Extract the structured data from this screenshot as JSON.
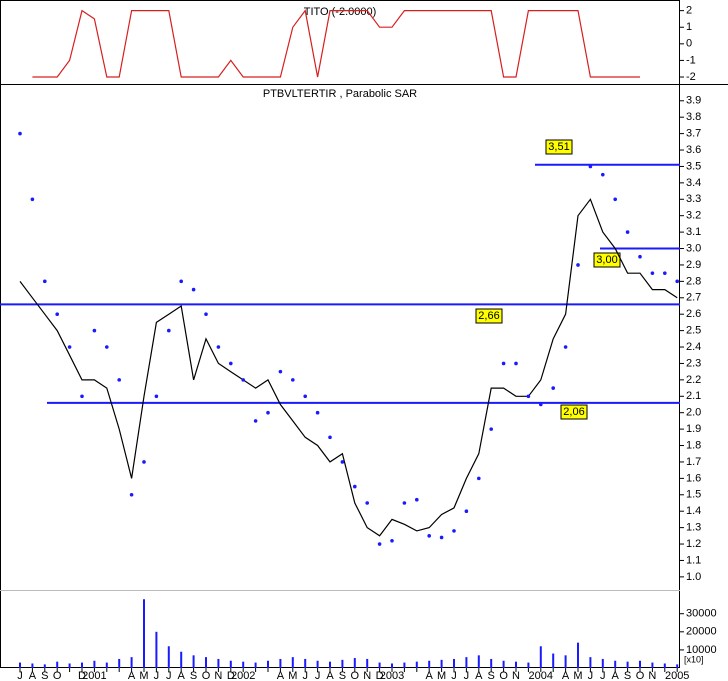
{
  "chart_data": [
    {
      "type": "line",
      "title": "TITO (-2.0000)",
      "ylim": [
        -2.3,
        2.4
      ],
      "yticks": [
        -2,
        -1,
        0,
        1,
        2
      ],
      "series": [
        {
          "color": "#d62020",
          "values": [
            null,
            -2,
            -2,
            -2,
            -1,
            2,
            1.5,
            -2,
            -2,
            2,
            2,
            2,
            2,
            -2,
            -2,
            -2,
            -2,
            -1,
            -2,
            -2,
            -2,
            -2,
            1,
            2,
            -2,
            2,
            2,
            2,
            2,
            1,
            1,
            2,
            2,
            2,
            2,
            2,
            2,
            2,
            2,
            -2,
            -2,
            2,
            2,
            2,
            2,
            2,
            -2,
            -2,
            -2,
            -2,
            -2,
            null,
            null,
            null
          ]
        }
      ]
    },
    {
      "type": "line",
      "title": "PTBVLTERTIR , Parabolic SAR",
      "categories": [
        "J",
        "A",
        "S",
        "O",
        null,
        "D",
        "2001",
        null,
        null,
        "A",
        "M",
        "J",
        "J",
        "A",
        "S",
        "O",
        "N",
        "D",
        "2002",
        null,
        null,
        "A",
        "M",
        "J",
        "J",
        "A",
        "S",
        "O",
        "N",
        "D",
        "2003",
        null,
        null,
        "A",
        "M",
        "J",
        "J",
        "A",
        "S",
        "O",
        "N",
        null,
        "2004",
        null,
        "A",
        "M",
        "J",
        "J",
        "A",
        "S",
        "O",
        "N",
        null,
        "2005"
      ],
      "ylim": [
        0.92,
        3.99
      ],
      "yticks": [
        {
          "value": 1.0,
          "label": "1.0"
        },
        1.1,
        1.2,
        1.3,
        1.4,
        1.5,
        1.6,
        1.7,
        1.8,
        1.9,
        {
          "value": 2.0,
          "label": "2.0"
        },
        2.1,
        2.2,
        2.3,
        2.4,
        2.5,
        2.6,
        2.7,
        2.8,
        2.9,
        {
          "value": 3.0,
          "label": "3.0"
        },
        3.1,
        3.2,
        3.3,
        3.4,
        3.5,
        3.6,
        3.7,
        3.8,
        3.9
      ],
      "series": [
        {
          "type": "line",
          "color": "#000000",
          "values": [
            2.8,
            2.7,
            2.6,
            2.5,
            2.35,
            2.2,
            2.2,
            2.15,
            1.9,
            1.6,
            2.1,
            2.55,
            2.6,
            2.65,
            2.2,
            2.45,
            2.3,
            2.25,
            2.2,
            2.15,
            2.2,
            2.05,
            1.95,
            1.85,
            1.8,
            1.7,
            1.75,
            1.45,
            1.3,
            1.25,
            1.35,
            1.32,
            1.28,
            1.3,
            1.38,
            1.42,
            1.6,
            1.75,
            2.15,
            2.15,
            2.1,
            2.1,
            2.2,
            2.45,
            2.6,
            3.2,
            3.3,
            3.1,
            3.0,
            2.85,
            2.85,
            2.75,
            2.75,
            2.7
          ]
        },
        {
          "type": "dots",
          "color": "#1a1aff",
          "values": [
            3.7,
            3.3,
            2.8,
            2.6,
            2.4,
            2.1,
            2.5,
            2.4,
            2.2,
            1.5,
            1.7,
            2.1,
            2.5,
            2.8,
            2.75,
            2.6,
            2.4,
            2.3,
            2.2,
            1.95,
            2.0,
            2.25,
            2.2,
            2.1,
            2.0,
            1.85,
            1.7,
            1.55,
            1.45,
            1.2,
            1.22,
            1.45,
            1.47,
            1.25,
            1.24,
            1.28,
            1.4,
            1.6,
            1.9,
            2.3,
            2.3,
            2.1,
            2.05,
            2.15,
            2.4,
            2.9,
            3.5,
            3.45,
            3.3,
            3.1,
            2.95,
            2.85,
            2.85,
            2.8
          ]
        }
      ],
      "hlines": [
        {
          "value": 3.51,
          "label": "3,51"
        },
        {
          "value": 3.0,
          "label": "3,00"
        },
        {
          "value": 2.66,
          "label": "2,66"
        },
        {
          "value": 2.06,
          "label": "2,06"
        }
      ],
      "hline_color": "#1a1aff",
      "label_color": "#ffff00"
    },
    {
      "type": "bar",
      "unit_label": "[x10]",
      "ylim": [
        0,
        42000
      ],
      "yticks": [
        10000,
        20000,
        30000
      ],
      "series": [
        {
          "color": "#1a1aff",
          "values": [
            3000,
            2500,
            2000,
            3500,
            2500,
            3000,
            4000,
            3000,
            5000,
            6000,
            38000,
            20000,
            12000,
            9000,
            7000,
            6000,
            5000,
            4000,
            3500,
            3000,
            4000,
            5000,
            6000,
            5000,
            4000,
            3500,
            4500,
            5500,
            5000,
            3000,
            2500,
            3000,
            3500,
            4000,
            4500,
            5000,
            6000,
            7000,
            5000,
            4000,
            3500,
            3000,
            12000,
            8000,
            7000,
            14000,
            6000,
            5000,
            4000,
            3500,
            4000,
            3000,
            2500,
            2000
          ]
        }
      ]
    }
  ]
}
